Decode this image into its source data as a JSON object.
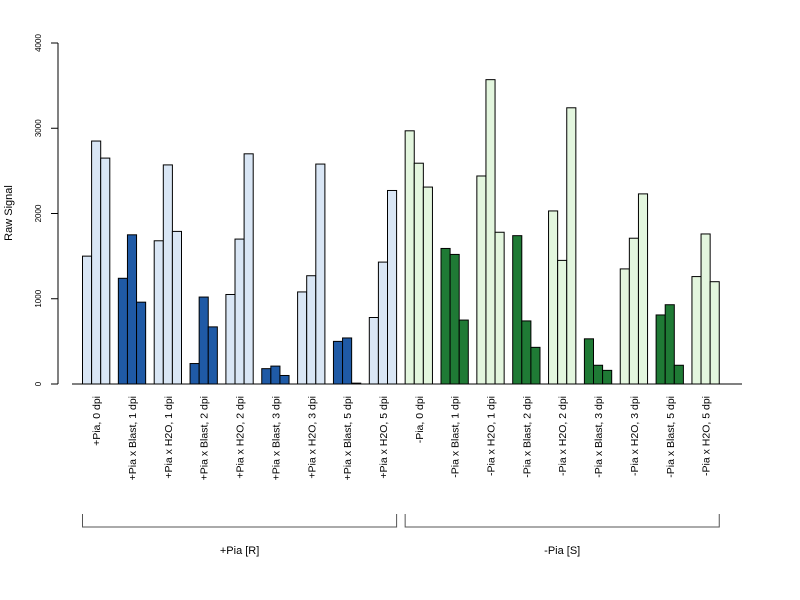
{
  "chart_data": {
    "type": "bar",
    "ylabel": "Raw Signal",
    "ylim": [
      0,
      4000
    ],
    "yticks": [
      0,
      1000,
      2000,
      3000,
      4000
    ],
    "categories": [
      "+Pia, 0 dpi",
      "+Pia x Blast, 1 dpi",
      "+Pia x H2O, 1 dpi",
      "+Pia x Blast, 2 dpi",
      "+Pia x H2O, 2 dpi",
      "+Pia x Blast, 3 dpi",
      "+Pia x H2O, 3 dpi",
      "+Pia x Blast, 5 dpi",
      "+Pia x H2O, 5 dpi",
      "-Pia, 0 dpi",
      "-Pia x Blast, 1 dpi",
      "-Pia x H2O, 1 dpi",
      "-Pia x Blast, 2 dpi",
      "-Pia x H2O, 2 dpi",
      "-Pia x Blast, 3 dpi",
      "-Pia x H2O, 3 dpi",
      "-Pia x Blast, 5 dpi",
      "-Pia x H2O, 5 dpi"
    ],
    "values": [
      [
        1500,
        2850,
        2650
      ],
      [
        1240,
        1750,
        960
      ],
      [
        1680,
        2570,
        1790
      ],
      [
        240,
        1020,
        670
      ],
      [
        1050,
        1700,
        2700
      ],
      [
        180,
        210,
        100
      ],
      [
        1080,
        1270,
        2580
      ],
      [
        500,
        540,
        10
      ],
      [
        780,
        1430,
        2270
      ],
      [
        2970,
        2590,
        2310
      ],
      [
        1590,
        1520,
        750
      ],
      [
        2440,
        3570,
        1780
      ],
      [
        1740,
        740,
        430
      ],
      [
        2030,
        1450,
        3240
      ],
      [
        530,
        220,
        160
      ],
      [
        1350,
        1710,
        2230
      ],
      [
        810,
        930,
        220
      ],
      [
        1260,
        1760,
        1200
      ]
    ],
    "bar_colors": [
      "#d9e6f5",
      "#1f5aa6",
      "#d9e6f5",
      "#1f5aa6",
      "#d9e6f5",
      "#1f5aa6",
      "#d9e6f5",
      "#1f5aa6",
      "#d9e6f5",
      "#e3f6de",
      "#1f7a35",
      "#e3f6de",
      "#1f7a35",
      "#e3f6de",
      "#1f7a35",
      "#e3f6de",
      "#1f7a35",
      "#e3f6de"
    ],
    "groups": [
      {
        "label": "+Pia [R]",
        "first": 0,
        "last": 8
      },
      {
        "label": "-Pia [S]",
        "first": 9,
        "last": 17
      }
    ],
    "grid": false
  }
}
